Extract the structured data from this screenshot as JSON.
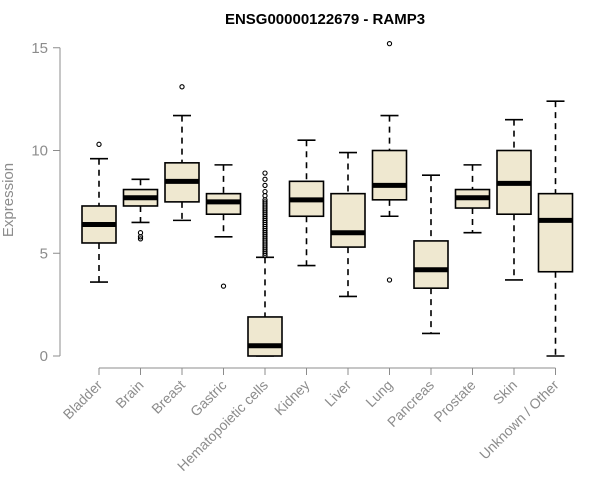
{
  "chart_data": {
    "type": "boxplot",
    "title": "ENSG00000122679 - RAMP3",
    "xlabel": "",
    "ylabel": "Expression",
    "ylim": [
      0,
      15.5
    ],
    "yticks": [
      0,
      5,
      10,
      15
    ],
    "grid": false,
    "colors": {
      "box_fill": "#efe8d0",
      "stroke": "#000000",
      "axis": "#8c8c8c"
    },
    "categories": [
      "Bladder",
      "Brain",
      "Breast",
      "Gastric",
      "Hematopoietic cells",
      "Kidney",
      "Liver",
      "Lung",
      "Pancreas",
      "Prostate",
      "Skin",
      "Unknown / Other"
    ],
    "boxes": [
      {
        "whisker_low": 3.6,
        "q1": 5.5,
        "median": 6.4,
        "q3": 7.3,
        "whisker_high": 9.6,
        "outliers": [
          10.3
        ]
      },
      {
        "whisker_low": 6.5,
        "q1": 7.3,
        "median": 7.7,
        "q3": 8.1,
        "whisker_high": 8.6,
        "outliers": [
          6.0,
          5.8,
          5.7
        ]
      },
      {
        "whisker_low": 6.6,
        "q1": 7.5,
        "median": 8.5,
        "q3": 9.4,
        "whisker_high": 11.7,
        "outliers": [
          13.1
        ]
      },
      {
        "whisker_low": 5.8,
        "q1": 6.9,
        "median": 7.5,
        "q3": 7.9,
        "whisker_high": 9.3,
        "outliers": [
          3.4
        ]
      },
      {
        "whisker_low": 0.0,
        "q1": 0.0,
        "median": 0.5,
        "q3": 1.9,
        "whisker_high": 4.8,
        "outliers": [
          4.9,
          5.0,
          5.1,
          5.2,
          5.3,
          5.4,
          5.5,
          5.6,
          5.7,
          5.8,
          5.9,
          6.0,
          6.1,
          6.2,
          6.3,
          6.4,
          6.5,
          6.6,
          6.7,
          6.8,
          6.9,
          7.0,
          7.1,
          7.2,
          7.3,
          7.4,
          7.5,
          7.6,
          7.8,
          8.0,
          8.3,
          8.6,
          8.9
        ]
      },
      {
        "whisker_low": 4.4,
        "q1": 6.8,
        "median": 7.6,
        "q3": 8.5,
        "whisker_high": 10.5,
        "outliers": []
      },
      {
        "whisker_low": 2.9,
        "q1": 5.3,
        "median": 6.0,
        "q3": 7.9,
        "whisker_high": 9.9,
        "outliers": []
      },
      {
        "whisker_low": 6.8,
        "q1": 7.6,
        "median": 8.3,
        "q3": 10.0,
        "whisker_high": 11.7,
        "outliers": [
          15.2,
          3.7
        ]
      },
      {
        "whisker_low": 1.1,
        "q1": 3.3,
        "median": 4.2,
        "q3": 5.6,
        "whisker_high": 8.8,
        "outliers": []
      },
      {
        "whisker_low": 6.0,
        "q1": 7.2,
        "median": 7.7,
        "q3": 8.1,
        "whisker_high": 9.3,
        "outliers": []
      },
      {
        "whisker_low": 3.7,
        "q1": 6.9,
        "median": 8.4,
        "q3": 10.0,
        "whisker_high": 11.5,
        "outliers": []
      },
      {
        "whisker_low": 0.0,
        "q1": 4.1,
        "median": 6.6,
        "q3": 7.9,
        "whisker_high": 12.4,
        "outliers": []
      }
    ]
  }
}
